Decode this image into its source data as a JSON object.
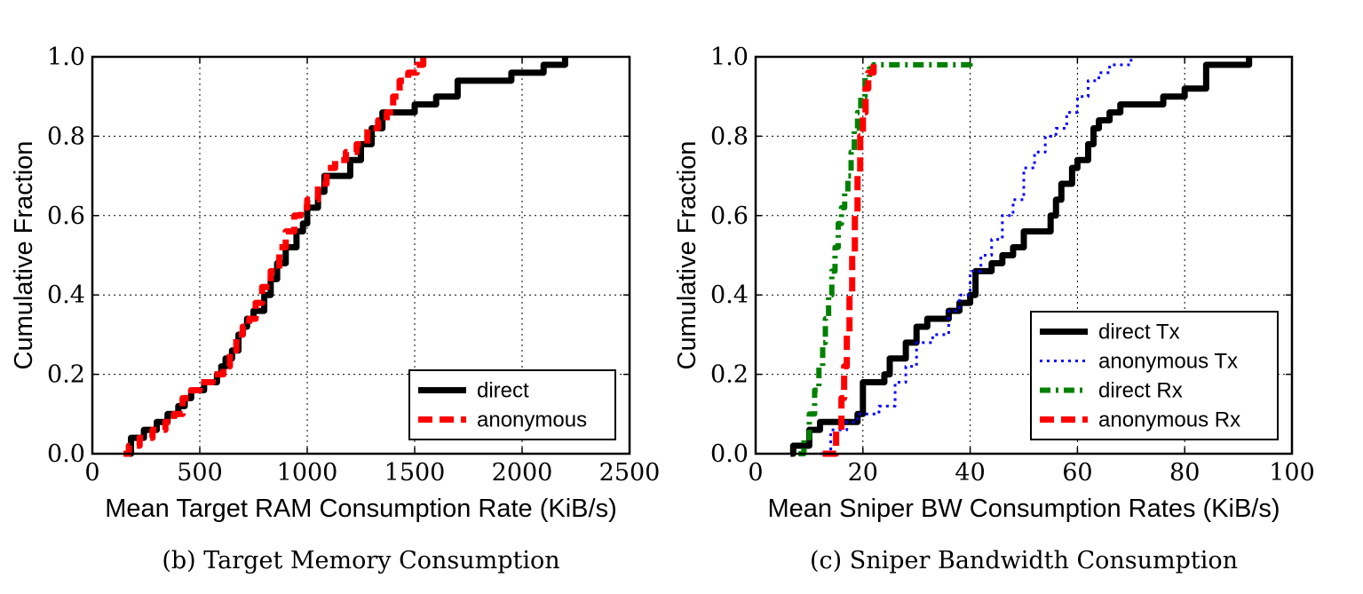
{
  "chart_data": [
    {
      "type": "line",
      "caption": "(b) Target Memory Consumption",
      "xlabel": "Mean Target RAM Consumption Rate (KiB/s)",
      "ylabel": "Cumulative Fraction",
      "xlim": [
        0,
        2500
      ],
      "ylim": [
        0,
        1.0
      ],
      "xticks": [
        "0",
        "500",
        "1000",
        "1500",
        "2000",
        "2500"
      ],
      "yticks": [
        "0.0",
        "0.2",
        "0.4",
        "0.6",
        "0.8",
        "1.0"
      ],
      "grid": true,
      "legend_position": "bottom-right",
      "series": [
        {
          "name": "direct",
          "style": "solid",
          "color": "#000000",
          "x": [
            155,
            180,
            240,
            300,
            350,
            400,
            430,
            460,
            520,
            580,
            600,
            620,
            650,
            680,
            700,
            720,
            750,
            800,
            830,
            860,
            900,
            950,
            980,
            1000,
            1050,
            1080,
            1150,
            1200,
            1250,
            1300,
            1350,
            1400,
            1450,
            1500,
            1600,
            1700,
            1800,
            1900,
            1950,
            2000,
            2100,
            2200
          ],
          "y": [
            0.0,
            0.04,
            0.06,
            0.08,
            0.1,
            0.12,
            0.14,
            0.16,
            0.18,
            0.2,
            0.22,
            0.24,
            0.26,
            0.3,
            0.32,
            0.34,
            0.36,
            0.4,
            0.44,
            0.48,
            0.52,
            0.56,
            0.58,
            0.62,
            0.66,
            0.7,
            0.7,
            0.74,
            0.78,
            0.82,
            0.86,
            0.86,
            0.86,
            0.88,
            0.9,
            0.94,
            0.94,
            0.94,
            0.96,
            0.96,
            0.98,
            1.0
          ]
        },
        {
          "name": "anonymous",
          "style": "dashed",
          "color": "#ff0000",
          "x": [
            145,
            170,
            220,
            280,
            340,
            380,
            420,
            460,
            500,
            560,
            610,
            640,
            670,
            700,
            730,
            760,
            790,
            830,
            870,
            900,
            940,
            970,
            1000,
            1050,
            1090,
            1130,
            1180,
            1230,
            1280,
            1330,
            1370,
            1400,
            1430,
            1470,
            1510,
            1540
          ],
          "y": [
            0.0,
            0.02,
            0.04,
            0.06,
            0.08,
            0.1,
            0.14,
            0.16,
            0.18,
            0.2,
            0.22,
            0.26,
            0.3,
            0.32,
            0.34,
            0.38,
            0.42,
            0.46,
            0.52,
            0.56,
            0.6,
            0.62,
            0.64,
            0.68,
            0.72,
            0.74,
            0.76,
            0.78,
            0.82,
            0.84,
            0.86,
            0.9,
            0.94,
            0.96,
            0.98,
            1.0
          ]
        }
      ]
    },
    {
      "type": "line",
      "caption": "(c) Sniper Bandwidth Consumption",
      "xlabel": "Mean Sniper BW Consumption Rates (KiB/s)",
      "ylabel": "Cumulative Fraction",
      "xlim": [
        0,
        100
      ],
      "ylim": [
        0,
        1.0
      ],
      "xticks": [
        "0",
        "20",
        "40",
        "60",
        "80",
        "100"
      ],
      "yticks": [
        "0.0",
        "0.2",
        "0.4",
        "0.6",
        "0.8",
        "1.0"
      ],
      "grid": true,
      "legend_position": "bottom-right",
      "series": [
        {
          "name": "direct Tx",
          "style": "solid",
          "color": "#000000",
          "x": [
            6.5,
            7,
            10,
            12,
            16,
            19,
            20,
            24,
            25,
            28,
            30,
            32,
            33,
            36,
            38,
            40,
            41,
            44,
            46,
            48,
            50,
            53,
            55,
            56,
            57,
            59,
            60,
            62,
            63,
            64,
            66,
            68,
            72,
            76,
            80,
            84,
            86,
            90,
            92
          ],
          "y": [
            0.0,
            0.02,
            0.06,
            0.08,
            0.08,
            0.1,
            0.18,
            0.2,
            0.24,
            0.28,
            0.32,
            0.34,
            0.34,
            0.36,
            0.38,
            0.4,
            0.46,
            0.48,
            0.5,
            0.52,
            0.56,
            0.56,
            0.6,
            0.64,
            0.68,
            0.72,
            0.74,
            0.78,
            0.82,
            0.84,
            0.86,
            0.88,
            0.88,
            0.9,
            0.92,
            0.98,
            0.98,
            0.98,
            1.0
          ]
        },
        {
          "name": "anonymous Tx",
          "style": "dotted",
          "color": "#0000ff",
          "x": [
            12,
            14,
            17,
            19,
            20,
            23,
            26,
            28,
            30,
            33,
            36,
            38,
            40,
            42,
            44,
            46,
            48,
            50,
            52,
            54,
            56,
            58,
            60,
            62,
            64,
            66,
            70
          ],
          "y": [
            0.0,
            0.06,
            0.08,
            0.1,
            0.1,
            0.12,
            0.18,
            0.22,
            0.28,
            0.3,
            0.36,
            0.4,
            0.46,
            0.5,
            0.54,
            0.6,
            0.64,
            0.72,
            0.76,
            0.8,
            0.82,
            0.86,
            0.9,
            0.94,
            0.96,
            0.98,
            1.0
          ]
        },
        {
          "name": "direct Rx",
          "style": "dashdot",
          "color": "#008000",
          "x": [
            8,
            9,
            10,
            11,
            11.8,
            12.5,
            13,
            13.6,
            14.2,
            14.8,
            15.4,
            16,
            16.6,
            17.2,
            17.8,
            18.4,
            19,
            19.6,
            20.4,
            21.2,
            22,
            25,
            30,
            35,
            40
          ],
          "y": [
            0.0,
            0.04,
            0.1,
            0.16,
            0.22,
            0.28,
            0.34,
            0.4,
            0.46,
            0.52,
            0.58,
            0.62,
            0.66,
            0.7,
            0.76,
            0.82,
            0.86,
            0.9,
            0.94,
            0.97,
            0.98,
            0.98,
            0.98,
            0.98,
            1.0
          ]
        },
        {
          "name": "anonymous Rx",
          "style": "dashed",
          "color": "#ff0000",
          "x": [
            12.5,
            15,
            16,
            16.5,
            17,
            17.5,
            18,
            18.5,
            19,
            19.5,
            20,
            20.5,
            21,
            22
          ],
          "y": [
            0.0,
            0.06,
            0.14,
            0.22,
            0.3,
            0.4,
            0.5,
            0.6,
            0.7,
            0.8,
            0.86,
            0.92,
            0.96,
            1.0
          ]
        }
      ]
    }
  ]
}
